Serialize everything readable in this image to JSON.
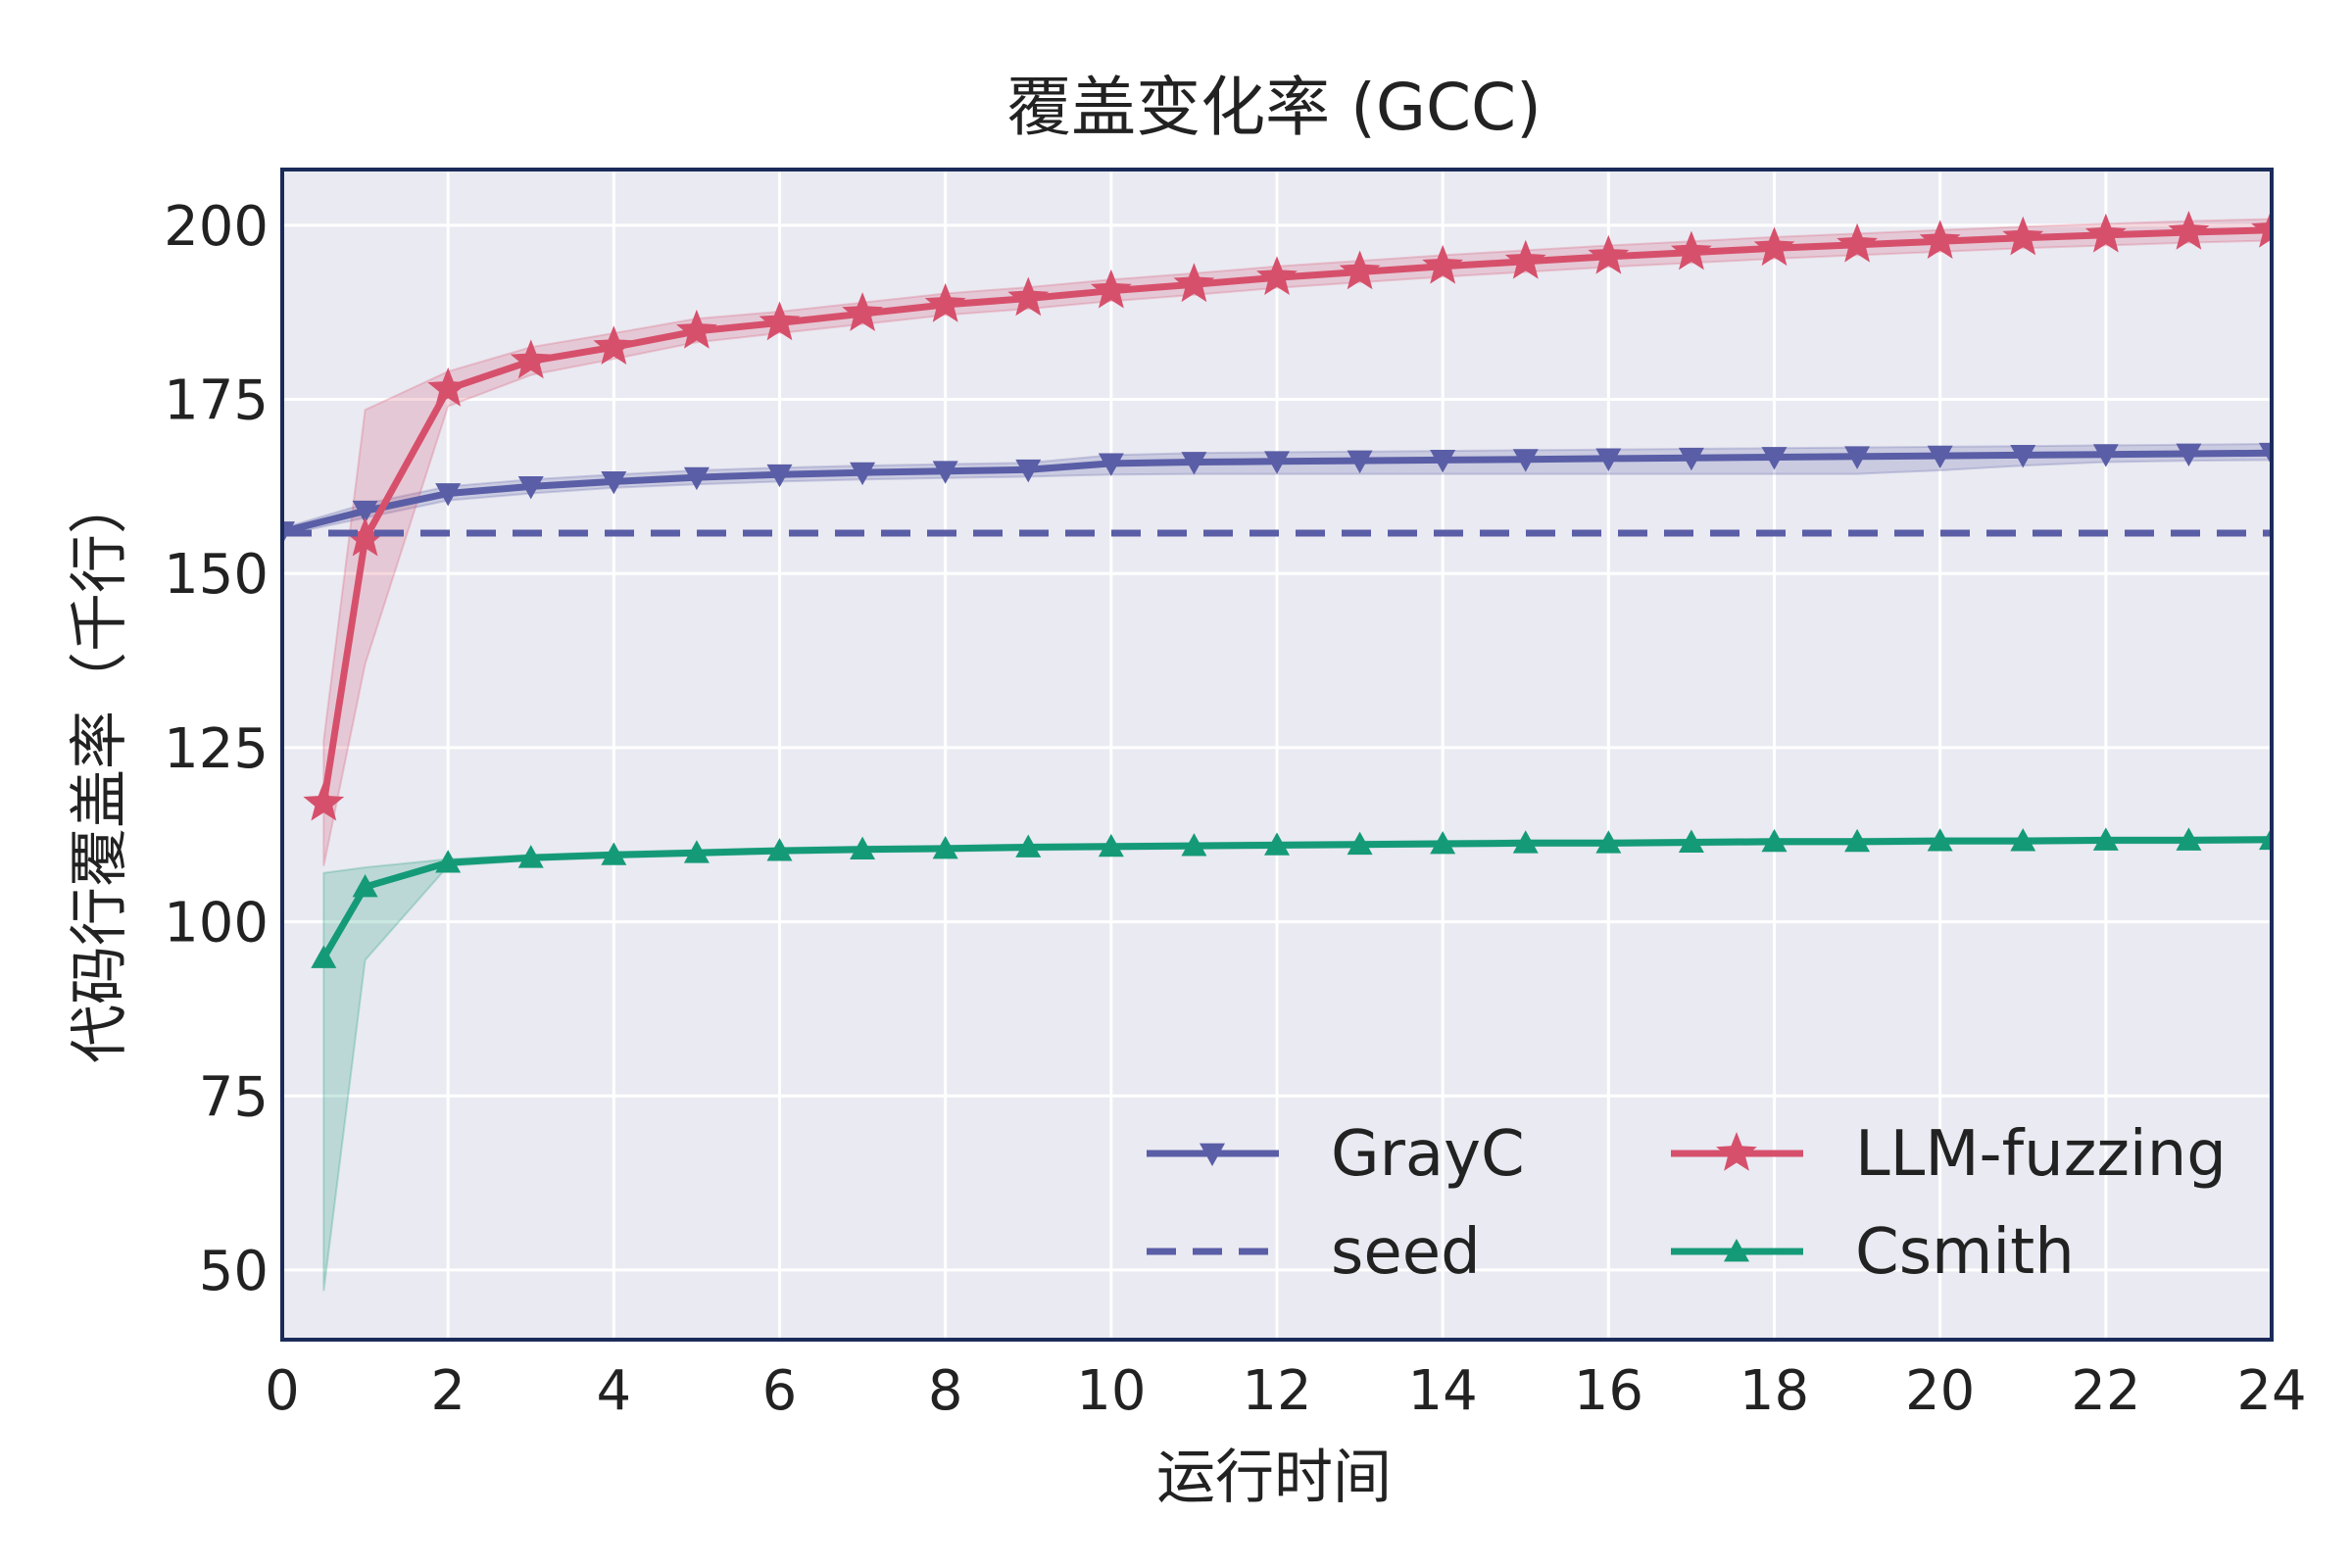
{
  "chart_data": {
    "type": "line",
    "title": "覆盖变化率 (GCC)",
    "xlabel": "运行时间",
    "ylabel": "代码行覆盖率（千行）",
    "xlim": [
      0,
      24
    ],
    "ylim": [
      40,
      208
    ],
    "xticks": [
      0,
      2,
      4,
      6,
      8,
      10,
      12,
      14,
      16,
      18,
      20,
      22,
      24
    ],
    "yticks": [
      50,
      75,
      100,
      125,
      150,
      175,
      200
    ],
    "grid": true,
    "legend_position": "lower-right",
    "background_color": "#eaeaf2",
    "frame_color": "#1a2b5a",
    "series": [
      {
        "name": "GrayC",
        "color": "#5a5ea6",
        "marker": "triangle-down",
        "style": "solid",
        "x": [
          0,
          1,
          2,
          3,
          4,
          5,
          6,
          7,
          8,
          9,
          10,
          11,
          12,
          13,
          14,
          15,
          16,
          17,
          18,
          19,
          20,
          21,
          22,
          23,
          24
        ],
        "y": [
          156,
          159,
          161.5,
          162.5,
          163.2,
          163.8,
          164.2,
          164.5,
          164.7,
          164.9,
          165.8,
          166,
          166.1,
          166.2,
          166.3,
          166.4,
          166.5,
          166.6,
          166.7,
          166.8,
          166.9,
          167,
          167.1,
          167.2,
          167.3
        ],
        "band_lower": [
          155.5,
          158,
          160.5,
          161.5,
          162.3,
          162.8,
          163.2,
          163.5,
          163.7,
          163.9,
          164.2,
          164.3,
          164.3,
          164.3,
          164.3,
          164.3,
          164.3,
          164.3,
          164.3,
          164.3,
          164.8,
          165.5,
          166,
          166.2,
          166.3
        ],
        "band_upper": [
          156.5,
          160,
          162.5,
          163.5,
          164.2,
          164.8,
          165.2,
          165.5,
          165.7,
          165.9,
          167,
          167.3,
          167.4,
          167.5,
          167.6,
          167.7,
          167.8,
          167.9,
          168,
          168.1,
          168.2,
          168.3,
          168.4,
          168.5,
          168.6
        ]
      },
      {
        "name": "LLM-fuzzing",
        "color": "#d6506c",
        "marker": "star",
        "style": "solid",
        "x": [
          0.5,
          1,
          2,
          3,
          4,
          5,
          6,
          7,
          8,
          9,
          10,
          11,
          12,
          13,
          14,
          15,
          16,
          17,
          18,
          19,
          20,
          21,
          22,
          23,
          24
        ],
        "y": [
          117,
          155,
          176.5,
          180.5,
          182.5,
          184.8,
          186,
          187.3,
          188.6,
          189.5,
          190.6,
          191.5,
          192.5,
          193.3,
          194.1,
          194.8,
          195.5,
          196.1,
          196.7,
          197.2,
          197.7,
          198.2,
          198.6,
          199,
          199.3
        ],
        "band_lower": [
          108,
          137,
          174,
          178.5,
          180.8,
          183.2,
          184.5,
          185.8,
          187.1,
          188,
          189.1,
          190,
          191,
          191.8,
          192.6,
          193.3,
          194,
          194.6,
          195.2,
          195.7,
          196.2,
          196.7,
          197.1,
          197.5,
          197.8
        ],
        "band_upper": [
          126,
          173.5,
          179,
          182.5,
          184.5,
          186.6,
          187.6,
          188.9,
          190.2,
          191.1,
          192.2,
          193.1,
          194.1,
          194.9,
          195.7,
          196.4,
          197.1,
          197.7,
          198.3,
          198.8,
          199.3,
          199.8,
          200.2,
          200.6,
          200.9
        ]
      },
      {
        "name": "Csmith",
        "color": "#159a78",
        "marker": "triangle-up",
        "style": "solid",
        "x": [
          0.5,
          1,
          2,
          3,
          4,
          5,
          6,
          7,
          8,
          9,
          10,
          11,
          12,
          13,
          14,
          15,
          16,
          17,
          18,
          19,
          20,
          21,
          22,
          23,
          24
        ],
        "y": [
          94.8,
          105,
          108.5,
          109.2,
          109.6,
          109.9,
          110.2,
          110.4,
          110.5,
          110.7,
          110.8,
          110.9,
          111,
          111.1,
          111.2,
          111.3,
          111.3,
          111.4,
          111.5,
          111.5,
          111.6,
          111.6,
          111.7,
          111.7,
          111.8
        ],
        "band_lower": [
          47,
          94.5,
          108,
          108.8,
          109.2,
          109.5,
          109.8,
          110,
          110.1,
          110.3,
          110.4,
          110.5,
          110.6,
          110.7,
          110.8,
          110.9,
          110.9,
          111,
          111.1,
          111.1,
          111.2,
          111.2,
          111.3,
          111.3,
          111.4
        ],
        "band_upper": [
          107,
          107.8,
          109,
          109.6,
          110,
          110.3,
          110.6,
          110.8,
          110.9,
          111.1,
          111.2,
          111.3,
          111.4,
          111.5,
          111.6,
          111.7,
          111.7,
          111.8,
          111.9,
          111.9,
          112,
          112,
          112.1,
          112.1,
          112.2
        ]
      },
      {
        "name": "seed",
        "color": "#5a5ea6",
        "marker": "none",
        "style": "dashed",
        "x": [
          0,
          24
        ],
        "y": [
          155.8,
          155.8
        ]
      }
    ],
    "legend": [
      {
        "label": "GrayC",
        "series": 0
      },
      {
        "label": "LLM-fuzzing",
        "series": 1
      },
      {
        "label": "seed",
        "series": 3
      },
      {
        "label": "Csmith",
        "series": 2
      }
    ]
  }
}
